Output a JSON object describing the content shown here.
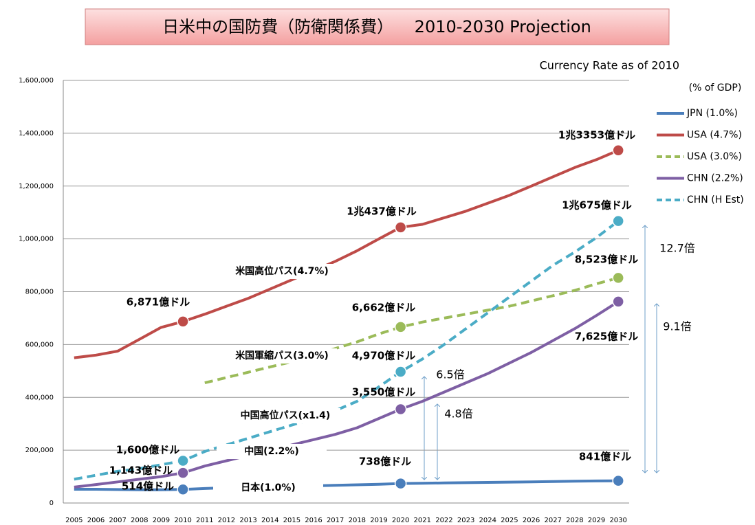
{
  "chart_data": {
    "type": "line",
    "title": "日米中の国防費（防衛関係費）    2010-2030 Projection",
    "subtitle": "Currency Rate as of 2010",
    "legend_title": "(% of GDP)",
    "categories": [
      "2005",
      "2006",
      "2007",
      "2008",
      "2009",
      "2010",
      "2011",
      "2012",
      "2013",
      "2014",
      "2015",
      "2016",
      "2017",
      "2018",
      "2019",
      "2020",
      "2021",
      "2022",
      "2023",
      "2024",
      "2025",
      "2026",
      "2027",
      "2028",
      "2029",
      "2030"
    ],
    "series": [
      {
        "name": "JPN (1.0%)",
        "color": "#4a7ebb",
        "dash": false,
        "values": [
          52000,
          52000,
          51000,
          50000,
          50000,
          51400,
          55000,
          58000,
          60000,
          62000,
          63000,
          65000,
          67000,
          69000,
          71000,
          73800,
          75000,
          76000,
          77000,
          78000,
          79000,
          80000,
          81500,
          82500,
          83500,
          84100
        ],
        "value_labels": [
          null,
          null,
          null,
          null,
          null,
          "514億ドル",
          null,
          null,
          null,
          null,
          null,
          null,
          null,
          null,
          null,
          "738億ドル",
          null,
          null,
          null,
          null,
          null,
          null,
          null,
          null,
          null,
          "841億ドル"
        ]
      },
      {
        "name": "USA (4.7%)",
        "color": "#be4b48",
        "dash": false,
        "values": [
          550000,
          560000,
          575000,
          620000,
          665000,
          687100,
          715000,
          745000,
          775000,
          810000,
          845000,
          880000,
          915000,
          955000,
          1000000,
          1043700,
          1055000,
          1080000,
          1105000,
          1135000,
          1165000,
          1200000,
          1235000,
          1270000,
          1300000,
          1335300
        ],
        "value_labels": [
          null,
          null,
          null,
          null,
          null,
          "6,871億ドル",
          null,
          null,
          null,
          null,
          null,
          null,
          null,
          null,
          null,
          "1兆437億ドル",
          null,
          null,
          null,
          null,
          null,
          null,
          null,
          null,
          null,
          "1兆3353億ドル"
        ]
      },
      {
        "name": "USA (3.0%)",
        "color": "#9bbb59",
        "dash": true,
        "values": [
          null,
          null,
          null,
          null,
          null,
          null,
          455000,
          475000,
          495000,
          515000,
          535000,
          560000,
          585000,
          610000,
          640000,
          666200,
          685000,
          700000,
          715000,
          730000,
          745000,
          765000,
          785000,
          805000,
          830000,
          852300
        ],
        "value_labels": [
          null,
          null,
          null,
          null,
          null,
          null,
          null,
          null,
          null,
          null,
          null,
          null,
          null,
          null,
          null,
          "6,662億ドル",
          null,
          null,
          null,
          null,
          null,
          null,
          null,
          null,
          null,
          "8,523億ドル"
        ]
      },
      {
        "name": "CHN (2.2%)",
        "color": "#7e5fa4",
        "dash": false,
        "values": [
          60000,
          70000,
          80000,
          90000,
          100000,
          114300,
          140000,
          160000,
          180000,
          200000,
          220000,
          240000,
          260000,
          285000,
          320000,
          355000,
          385000,
          420000,
          455000,
          490000,
          530000,
          570000,
          615000,
          660000,
          710000,
          762500
        ],
        "value_labels": [
          null,
          null,
          null,
          null,
          null,
          "1,143億ドル",
          null,
          null,
          null,
          null,
          null,
          null,
          null,
          null,
          null,
          "3,550億ドル",
          null,
          null,
          null,
          null,
          null,
          null,
          null,
          null,
          null,
          "7,625億ドル"
        ]
      },
      {
        "name": "CHN (H Est)",
        "color": "#4bacc6",
        "dash": true,
        "values": [
          90000,
          105000,
          120000,
          130000,
          145000,
          160000,
          195000,
          220000,
          245000,
          270000,
          295000,
          320000,
          350000,
          385000,
          440000,
          497000,
          545000,
          600000,
          660000,
          720000,
          780000,
          840000,
          900000,
          950000,
          1005000,
          1067500
        ],
        "value_labels": [
          null,
          null,
          null,
          null,
          null,
          "1,600億ドル",
          null,
          null,
          null,
          null,
          null,
          null,
          null,
          null,
          null,
          "4,970億ドル",
          null,
          null,
          null,
          null,
          null,
          null,
          null,
          null,
          null,
          "1兆675億ドル"
        ]
      }
    ],
    "annotations": [
      "米国高位パス(4.7%)",
      "米国軍縮パス(3.0%)",
      "中国高位パス(x1.4)",
      "中国(2.2%)",
      "日本(1.0%)",
      "12.7倍",
      "9.1倍",
      "6.5倍",
      "4.8倍"
    ],
    "ylim": [
      0,
      1600000
    ],
    "yticks": [
      0,
      {
        "value": 200000,
        "label": "200,000"
      },
      {
        "value": 400000,
        "label": "400,000"
      },
      {
        "value": 600000,
        "label": "600,000"
      },
      {
        "value": 800000,
        "label": "800,000"
      },
      {
        "value": 1000000,
        "label": "1,000,000"
      },
      {
        "value": 1200000,
        "label": "1,200,000"
      },
      {
        "value": 1400000,
        "label": "1,400,000"
      },
      {
        "value": 1600000,
        "label": "1,600,000"
      }
    ],
    "grid": true,
    "legend": "right"
  }
}
